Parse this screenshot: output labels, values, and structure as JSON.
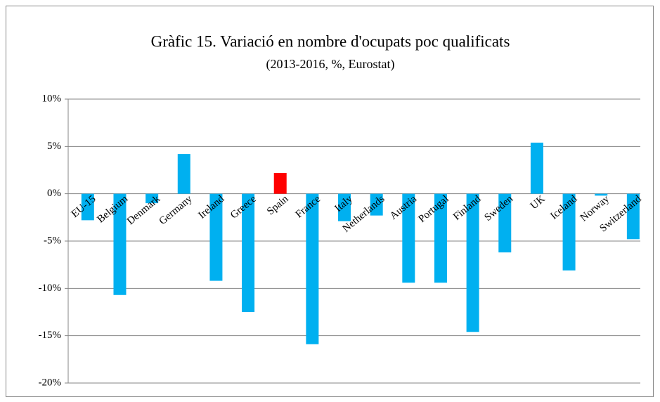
{
  "chart_data": {
    "type": "bar",
    "title": "Gràfic 15. Variació en nombre d'ocupats poc qualificats",
    "subtitle": "(2013-2016, %, Eurostat)",
    "categories": [
      "EU-15",
      "Belgium",
      "Denmark",
      "Germany",
      "Ireland",
      "Greece",
      "Spain",
      "France",
      "Italy",
      "Netherlands",
      "Austria",
      "Portugal",
      "Finland",
      "Sweden",
      "UK",
      "Iceland",
      "Norway",
      "Switzerland"
    ],
    "values": [
      -2.8,
      -10.7,
      -1.0,
      4.2,
      -9.2,
      -12.5,
      2.2,
      -15.9,
      -2.9,
      -2.3,
      -9.4,
      -9.4,
      -14.6,
      -6.2,
      5.4,
      -8.1,
      -0.2,
      -4.8
    ],
    "colors": [
      "#00b0f0",
      "#00b0f0",
      "#00b0f0",
      "#00b0f0",
      "#00b0f0",
      "#00b0f0",
      "#ff0000",
      "#00b0f0",
      "#00b0f0",
      "#00b0f0",
      "#00b0f0",
      "#00b0f0",
      "#00b0f0",
      "#00b0f0",
      "#00b0f0",
      "#00b0f0",
      "#00b0f0",
      "#00b0f0"
    ],
    "ylim": [
      -20,
      10
    ],
    "yticks": [
      {
        "value": -20,
        "label": "-20%"
      },
      {
        "value": -15,
        "label": "-15%"
      },
      {
        "value": -10,
        "label": "-10%"
      },
      {
        "value": -5,
        "label": "-5%"
      },
      {
        "value": 0,
        "label": "0%"
      },
      {
        "value": 5,
        "label": "5%"
      },
      {
        "value": 10,
        "label": "10%"
      }
    ],
    "grid": true
  }
}
